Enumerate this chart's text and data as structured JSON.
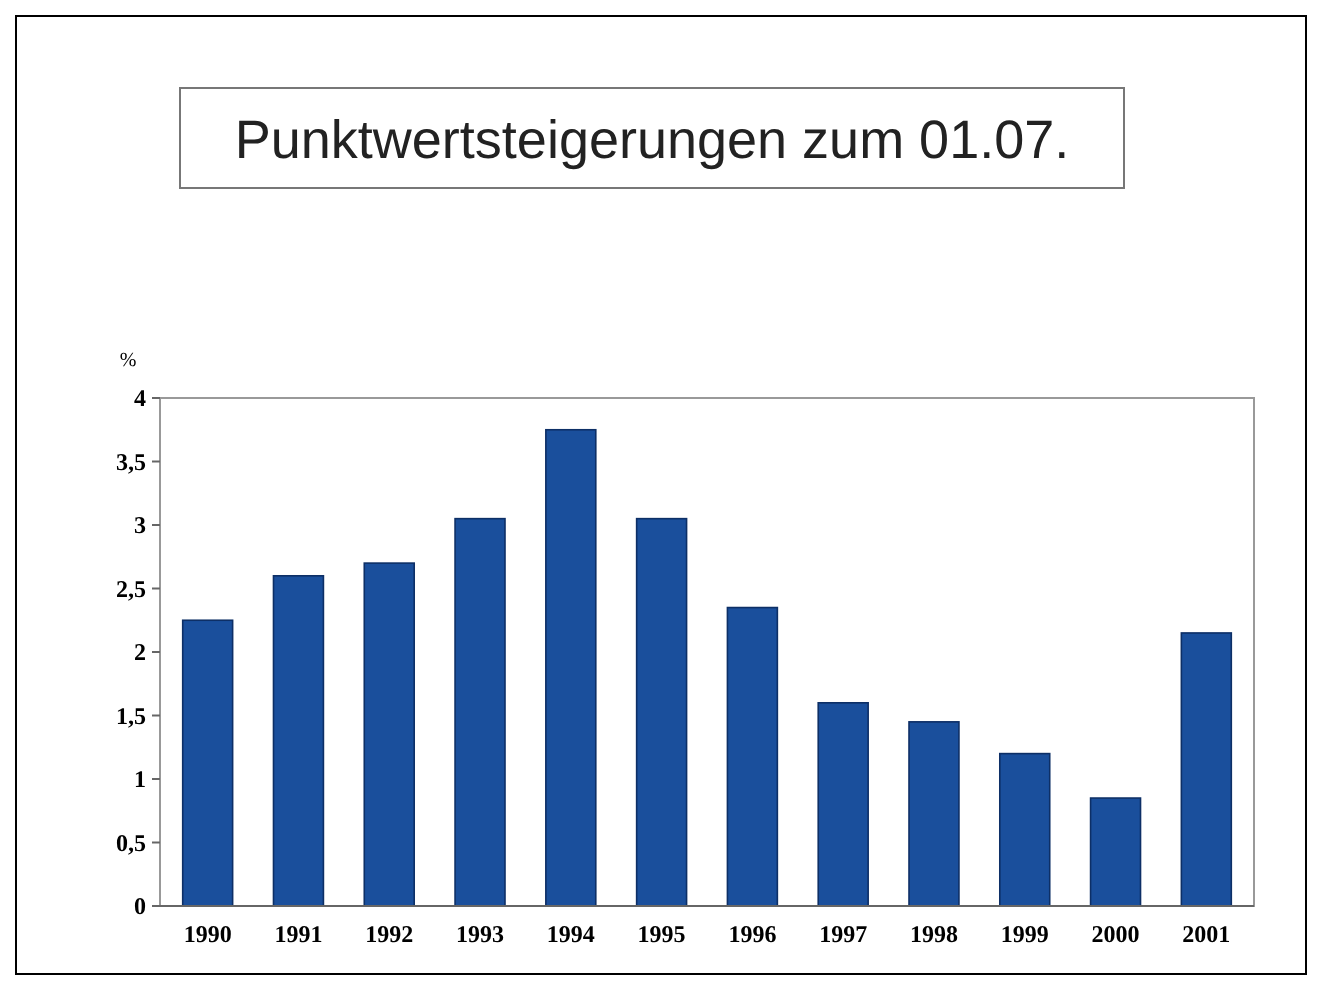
{
  "chart_data": {
    "type": "bar",
    "title": "Punktwertsteigerungen zum 01.07.",
    "ylabel": "%",
    "categories": [
      "1990",
      "1991",
      "1992",
      "1993",
      "1994",
      "1995",
      "1996",
      "1997",
      "1998",
      "1999",
      "2000",
      "2001"
    ],
    "values": [
      2.25,
      2.6,
      2.7,
      3.05,
      3.75,
      3.05,
      2.35,
      1.6,
      1.45,
      1.2,
      0.85,
      2.15
    ],
    "color": "#1a4f9c",
    "ylim": [
      0,
      4
    ],
    "yticks": [
      0,
      {
        "value": 0.5,
        "label": "0,5"
      },
      1,
      {
        "value": 1.5,
        "label": "1,5"
      },
      2,
      {
        "value": 2.5,
        "label": "2,5"
      },
      3,
      {
        "value": 3.5,
        "label": "3,5"
      },
      4
    ],
    "grid": false
  }
}
